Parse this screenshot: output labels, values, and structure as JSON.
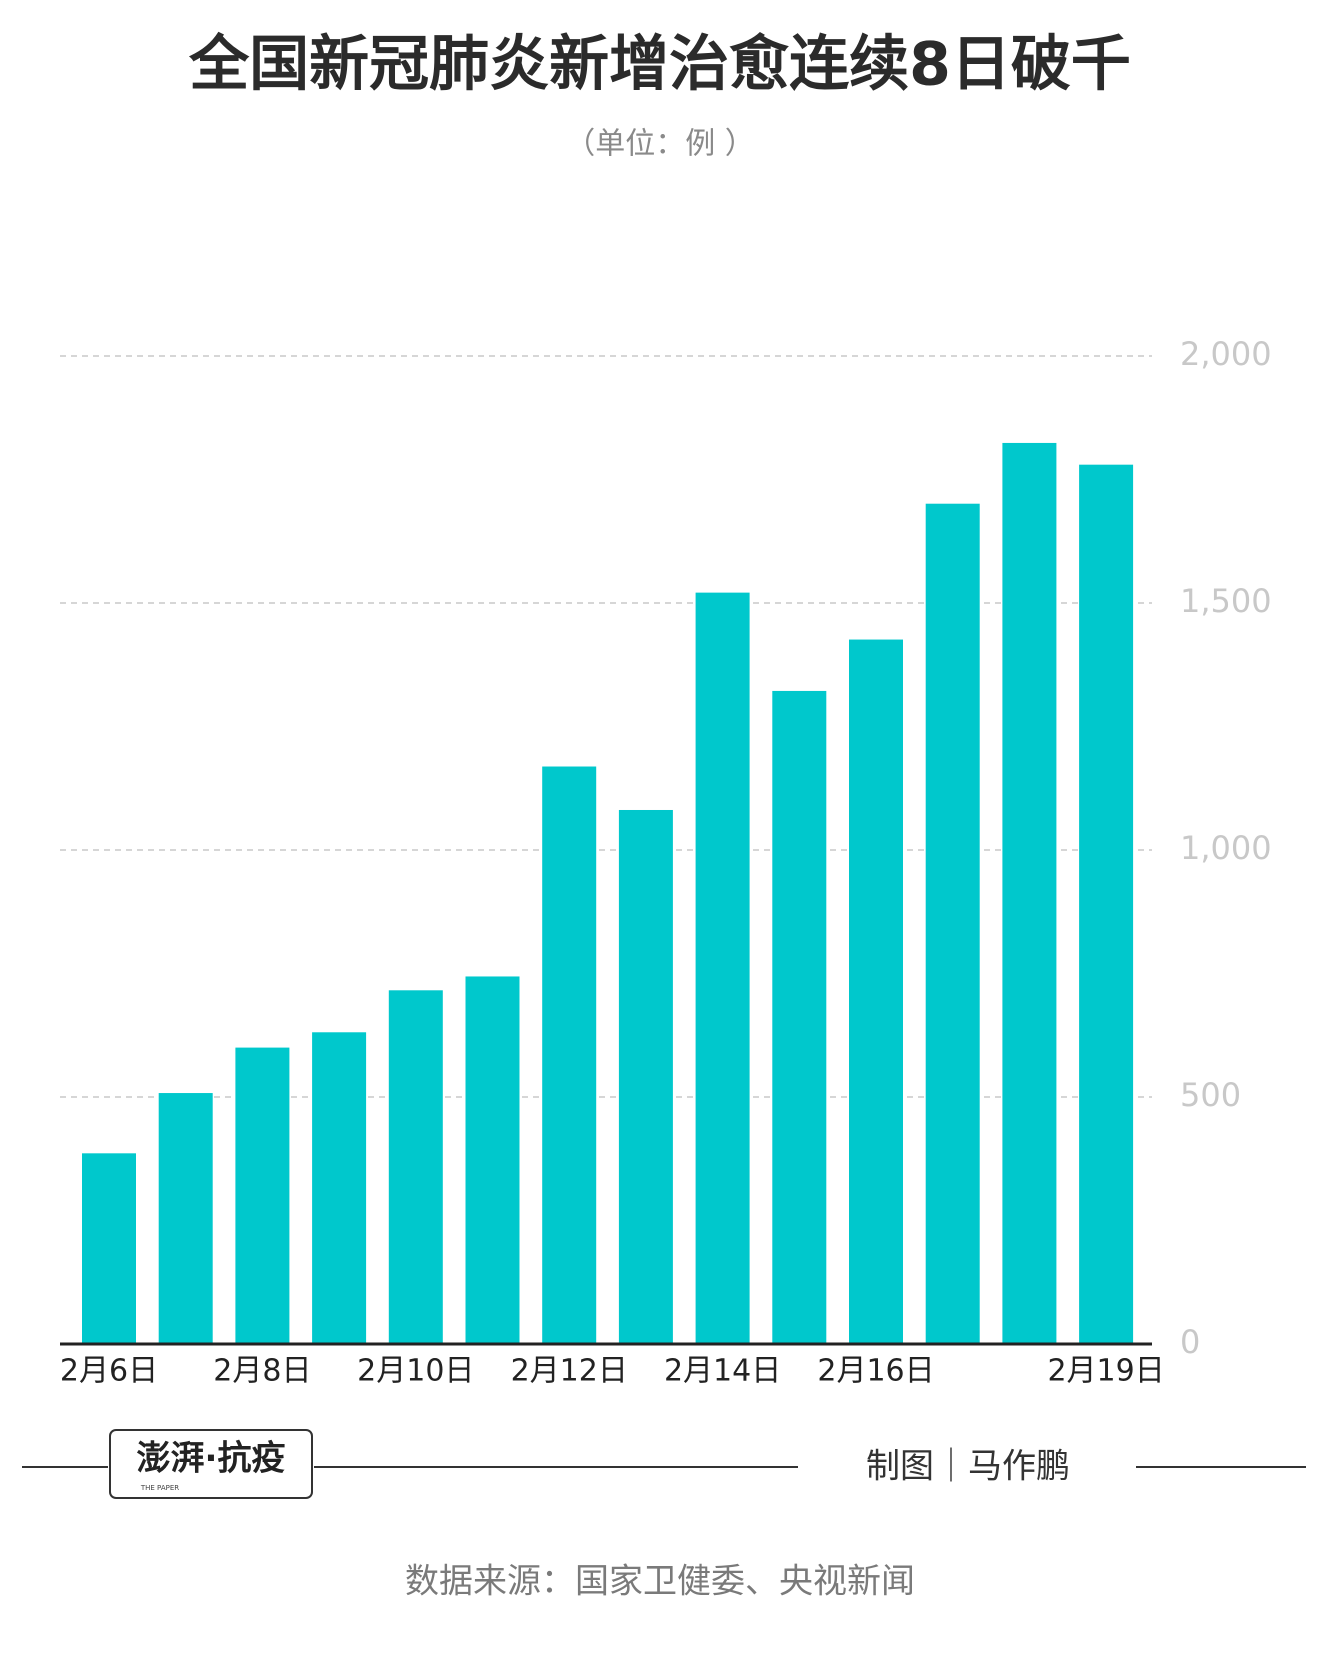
{
  "title": "全国新冠肺炎新增治愈连续8日破千",
  "subtitle": "（单位：例 ）",
  "chart_data": {
    "type": "bar",
    "categories": [
      "2月6日",
      null,
      "2月8日",
      null,
      "2月10日",
      null,
      "2月12日",
      null,
      "2月14日",
      null,
      "2月16日",
      null,
      null,
      "2月19日"
    ],
    "values": [
      386,
      508,
      600,
      631,
      716,
      744,
      1169,
      1081,
      1521,
      1322,
      1426,
      1701,
      1824,
      1780
    ],
    "color": "#00c8cc",
    "ylim": [
      0,
      2000
    ],
    "yticks": [
      0,
      500,
      {
        "value": 1000,
        "label": "1,000"
      },
      {
        "value": 1500,
        "label": "1,500"
      },
      {
        "value": 2000,
        "label": "2,000"
      }
    ],
    "grid": true
  },
  "footer": {
    "logo": "澎湃·抗疫",
    "logo_sub": "THE PAPER",
    "credit": "制图｜马作鹏",
    "source": "数据来源：国家卫健委、央视新闻"
  }
}
